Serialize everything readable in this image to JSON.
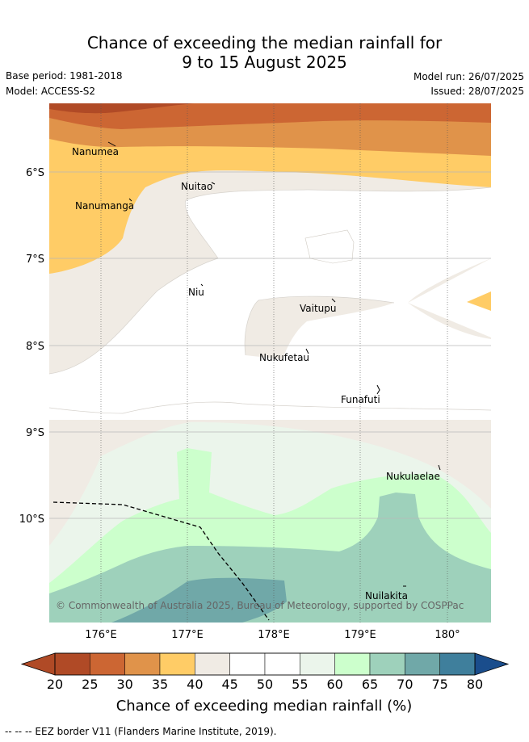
{
  "title_line1": "Chance of exceeding the median rainfall for",
  "title_line2": "9 to 15 August 2025",
  "base_period": "Base period: 1981-2018",
  "model": "Model: ACCESS-S2",
  "model_run": "Model run: 26/07/2025",
  "issued": "Issued: 28/07/2025",
  "lon_ticks": [
    "176°E",
    "177°E",
    "178°E",
    "179°E",
    "180°"
  ],
  "lat_ticks": [
    "6°S",
    "7°S",
    "8°S",
    "9°S",
    "10°S"
  ],
  "places": [
    "Nanumea",
    "Nuitao",
    "Nanumanga",
    "Niu",
    "Vaitupu",
    "Nukufetau",
    "Funafuti",
    "Nukulaelae",
    "Nuilakita"
  ],
  "copyright": "© Commonwealth of Australia 2025, Bureau of Meteorology, supported by COSPPac",
  "colorbar": {
    "ticks": [
      "20",
      "25",
      "30",
      "35",
      "40",
      "45",
      "50",
      "55",
      "60",
      "65",
      "70",
      "75",
      "80"
    ],
    "colors": [
      "#b04a26",
      "#cc6633",
      "#e0934a",
      "#ffcc66",
      "#f0ebe4",
      "#ffffff",
      "#ffffff",
      "#ebf5eb",
      "#ccffcc",
      "#9ed1bb",
      "#70a8a8",
      "#3f7f9c",
      "#1a4d8c"
    ],
    "label": "Chance of exceeding median rainfall (%)"
  },
  "footnote": "-- -- -- EEZ border V11 (Flanders Marine Institute, 2019)."
}
